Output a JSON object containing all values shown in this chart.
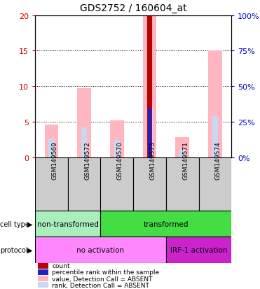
{
  "title": "GDS2752 / 160604_at",
  "samples": [
    "GSM149569",
    "GSM149572",
    "GSM149570",
    "GSM149573",
    "GSM149571",
    "GSM149574"
  ],
  "value_bars": [
    4.6,
    9.7,
    5.2,
    20.0,
    2.8,
    15.0
  ],
  "rank_bars": [
    2.6,
    4.2,
    2.4,
    7.0,
    1.0,
    5.8
  ],
  "count_bar_idx": 3,
  "count_bar_val": 20.0,
  "percentile_bar_idx": 3,
  "percentile_bar_val": 7.0,
  "ylim": [
    0,
    20
  ],
  "y2lim": [
    0,
    100
  ],
  "yticks": [
    0,
    5,
    10,
    15,
    20
  ],
  "y2ticks": [
    0,
    25,
    50,
    75,
    100
  ],
  "value_color": "#ffb6c1",
  "rank_color": "#c8d8f0",
  "count_color": "#bb0000",
  "percentile_color": "#2222cc",
  "cell_type_spans": [
    {
      "label": "non-transformed",
      "start": 0,
      "end": 2,
      "color": "#aaeebb"
    },
    {
      "label": "transformed",
      "start": 2,
      "end": 6,
      "color": "#44dd44"
    }
  ],
  "protocol_spans": [
    {
      "label": "no activation",
      "start": 0,
      "end": 4,
      "color": "#ff88ff"
    },
    {
      "label": "IRF-1 activation",
      "start": 4,
      "end": 6,
      "color": "#cc22cc"
    }
  ],
  "legend_items": [
    {
      "label": "count",
      "color": "#bb0000"
    },
    {
      "label": "percentile rank within the sample",
      "color": "#2222cc"
    },
    {
      "label": "value, Detection Call = ABSENT",
      "color": "#ffb6c1"
    },
    {
      "label": "rank, Detection Call = ABSENT",
      "color": "#c8d8f0"
    }
  ],
  "left_color": "#cc0000",
  "right_color": "#0000cc",
  "bg_color": "#ffffff"
}
